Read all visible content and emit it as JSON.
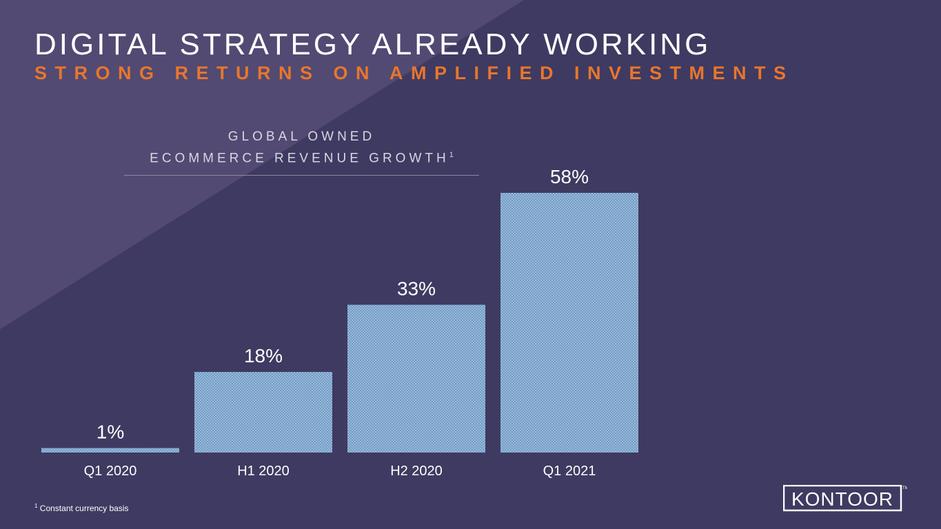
{
  "title": "DIGITAL STRATEGY ALREADY WORKING",
  "subtitle": "STRONG RETURNS ON AMPLIFIED INVESTMENTS",
  "chart_heading": {
    "line1": "GLOBAL OWNED",
    "line2": "ECOMMERCE REVENUE GROWTH",
    "footnote_marker": "1"
  },
  "chart_data": {
    "type": "bar",
    "title": "GLOBAL OWNED ECOMMERCE REVENUE GROWTH",
    "categories": [
      "Q1 2020",
      "H1 2020",
      "H2 2020",
      "Q1 2021"
    ],
    "values": [
      1,
      18,
      33,
      58
    ],
    "value_labels": [
      "1%",
      "18%",
      "33%",
      "58%"
    ],
    "unit": "%",
    "ylim": [
      0,
      60
    ],
    "grid": false,
    "xlabel": "",
    "ylabel": ""
  },
  "footnote": {
    "marker": "1",
    "text": "Constant currency basis"
  },
  "logo": {
    "text": "KONTOOR",
    "trademark": "TM"
  },
  "colors": {
    "background": "#3f3a61",
    "accent": "#e8762d",
    "bar": "#7fa8cf"
  }
}
